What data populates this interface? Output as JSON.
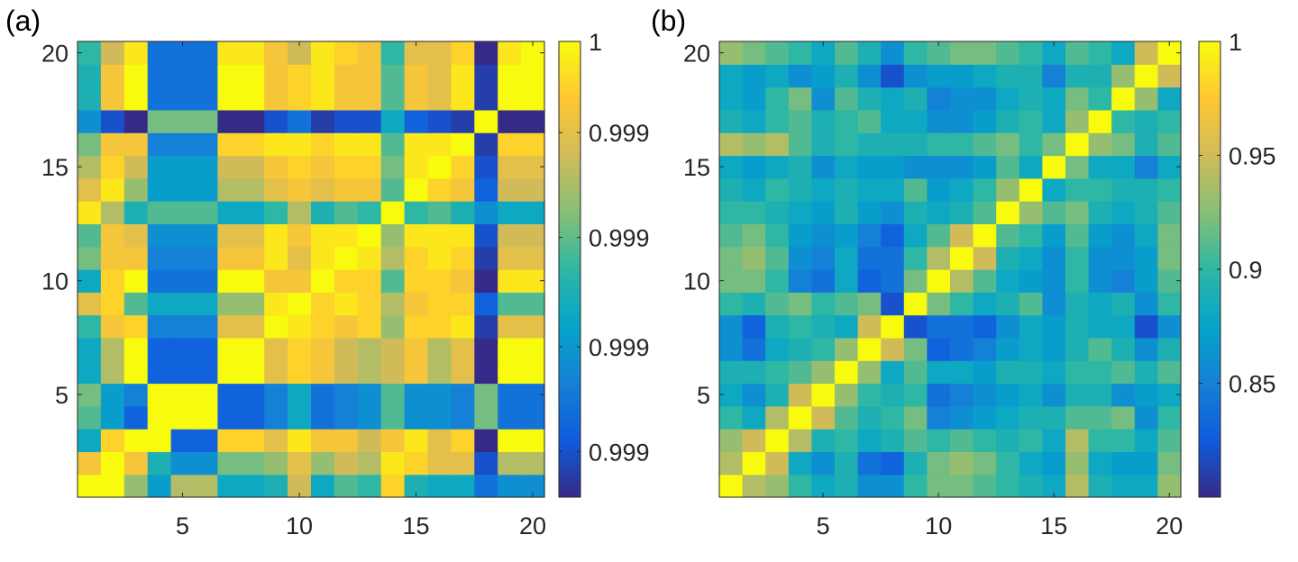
{
  "chart_data": [
    {
      "type": "heatmap",
      "panel_label": "(a)",
      "n": 20,
      "x_ticks": [
        "5",
        "10",
        "15",
        "20"
      ],
      "y_ticks": [
        "5",
        "10",
        "15",
        "20"
      ],
      "colorbar": {
        "range": [
          0.9993,
          1.0
        ],
        "tick_labels": [
          "1",
          "0.999",
          "0.999",
          "0.999",
          "0.999"
        ],
        "tick_fractions": [
          1.0,
          0.8,
          0.57,
          0.33,
          0.1
        ]
      },
      "matrix_normalized": [
        [
          1.0,
          1.0,
          0.65,
          0.35,
          0.7,
          0.7,
          0.4,
          0.4,
          0.45,
          0.75,
          0.4,
          0.55,
          0.5,
          0.9,
          0.45,
          0.4,
          0.4,
          0.2,
          0.3,
          0.3
        ],
        [
          0.85,
          1.0,
          0.85,
          0.45,
          0.3,
          0.3,
          0.6,
          0.6,
          0.65,
          0.8,
          0.65,
          0.75,
          0.7,
          0.95,
          0.9,
          0.8,
          0.8,
          0.1,
          0.7,
          0.7
        ],
        [
          0.4,
          0.9,
          1.0,
          1.0,
          0.15,
          0.15,
          0.9,
          0.9,
          0.8,
          0.95,
          0.85,
          0.85,
          0.75,
          0.85,
          0.95,
          0.8,
          0.9,
          0.0,
          1.0,
          1.0
        ],
        [
          0.55,
          0.35,
          0.15,
          1.0,
          1.0,
          1.0,
          0.15,
          0.15,
          0.25,
          0.4,
          0.2,
          0.25,
          0.3,
          0.55,
          0.3,
          0.3,
          0.25,
          0.6,
          0.2,
          0.2
        ],
        [
          0.6,
          0.35,
          0.25,
          1.0,
          1.0,
          1.0,
          0.15,
          0.15,
          0.25,
          0.4,
          0.2,
          0.25,
          0.3,
          0.55,
          0.3,
          0.3,
          0.25,
          0.6,
          0.2,
          0.2
        ],
        [
          0.4,
          0.7,
          1.0,
          0.15,
          0.15,
          0.15,
          1.0,
          1.0,
          0.8,
          0.9,
          0.85,
          0.75,
          0.7,
          0.75,
          0.85,
          0.7,
          0.8,
          0.0,
          1.0,
          1.0
        ],
        [
          0.4,
          0.7,
          1.0,
          0.15,
          0.15,
          0.15,
          1.0,
          1.0,
          0.8,
          0.9,
          0.85,
          0.75,
          0.7,
          0.75,
          0.85,
          0.7,
          0.8,
          0.0,
          1.0,
          1.0
        ],
        [
          0.5,
          0.85,
          0.9,
          0.25,
          0.25,
          0.25,
          0.8,
          0.8,
          1.0,
          0.95,
          0.9,
          0.85,
          0.9,
          0.65,
          0.9,
          0.9,
          0.95,
          0.05,
          0.8,
          0.8
        ],
        [
          0.8,
          0.9,
          0.55,
          0.4,
          0.4,
          0.4,
          0.65,
          0.65,
          0.95,
          1.0,
          0.9,
          0.95,
          0.9,
          0.7,
          0.85,
          0.9,
          0.9,
          0.15,
          0.55,
          0.55
        ],
        [
          0.4,
          0.9,
          1.0,
          0.2,
          0.2,
          0.2,
          1.0,
          1.0,
          0.85,
          0.85,
          1.0,
          0.9,
          0.9,
          0.55,
          0.9,
          0.9,
          0.85,
          0.0,
          0.95,
          0.95
        ],
        [
          0.6,
          0.85,
          0.85,
          0.25,
          0.25,
          0.25,
          0.85,
          0.85,
          0.95,
          0.8,
          0.95,
          1.0,
          0.95,
          0.7,
          0.9,
          0.95,
          0.9,
          0.05,
          0.8,
          0.8
        ],
        [
          0.55,
          0.85,
          0.8,
          0.3,
          0.3,
          0.3,
          0.8,
          0.8,
          0.95,
          0.85,
          0.95,
          0.95,
          1.0,
          0.65,
          0.95,
          0.95,
          0.95,
          0.1,
          0.75,
          0.75
        ],
        [
          0.95,
          0.7,
          0.45,
          0.55,
          0.55,
          0.55,
          0.4,
          0.4,
          0.5,
          0.7,
          0.45,
          0.55,
          0.5,
          1.0,
          0.5,
          0.55,
          0.45,
          0.3,
          0.4,
          0.4
        ],
        [
          0.8,
          0.95,
          0.65,
          0.35,
          0.35,
          0.35,
          0.7,
          0.7,
          0.8,
          0.85,
          0.8,
          0.85,
          0.85,
          0.55,
          1.0,
          0.9,
          0.85,
          0.15,
          0.75,
          0.75
        ],
        [
          0.7,
          0.9,
          0.75,
          0.35,
          0.35,
          0.35,
          0.75,
          0.75,
          0.85,
          0.9,
          0.85,
          0.9,
          0.9,
          0.6,
          0.95,
          1.0,
          0.9,
          0.1,
          0.8,
          0.8
        ],
        [
          0.6,
          0.85,
          0.85,
          0.25,
          0.25,
          0.25,
          0.9,
          0.9,
          0.95,
          0.95,
          0.9,
          0.95,
          0.95,
          0.55,
          0.95,
          0.95,
          1.0,
          0.05,
          0.9,
          0.9
        ],
        [
          0.3,
          0.1,
          0.0,
          0.6,
          0.6,
          0.6,
          0.0,
          0.0,
          0.1,
          0.2,
          0.05,
          0.1,
          0.1,
          0.4,
          0.15,
          0.1,
          0.05,
          1.0,
          0.0,
          0.0
        ],
        [
          0.45,
          0.85,
          1.0,
          0.2,
          0.2,
          0.2,
          1.0,
          1.0,
          0.85,
          0.9,
          0.95,
          0.85,
          0.85,
          0.55,
          0.85,
          0.8,
          0.95,
          0.05,
          1.0,
          1.0
        ],
        [
          0.45,
          0.85,
          1.0,
          0.2,
          0.2,
          0.2,
          1.0,
          1.0,
          0.85,
          0.9,
          0.95,
          0.85,
          0.85,
          0.55,
          0.85,
          0.8,
          0.95,
          0.05,
          1.0,
          1.0
        ],
        [
          0.5,
          0.75,
          0.95,
          0.2,
          0.2,
          0.2,
          0.95,
          0.95,
          0.85,
          0.75,
          0.95,
          0.9,
          0.85,
          0.5,
          0.8,
          0.8,
          0.9,
          0.0,
          0.95,
          1.0
        ]
      ]
    },
    {
      "type": "heatmap",
      "panel_label": "(b)",
      "n": 20,
      "x_ticks": [
        "5",
        "10",
        "15",
        "20"
      ],
      "y_ticks": [
        "5",
        "10",
        "15",
        "20"
      ],
      "colorbar": {
        "range": [
          0.8,
          1.0
        ],
        "tick_labels": [
          "1",
          "0.95",
          "0.9",
          "0.85"
        ],
        "tick_values": [
          1.0,
          0.95,
          0.9,
          0.85
        ]
      },
      "matrix": [
        [
          1.0,
          0.94,
          0.93,
          0.9,
          0.88,
          0.89,
          0.86,
          0.86,
          0.9,
          0.92,
          0.92,
          0.91,
          0.9,
          0.89,
          0.88,
          0.94,
          0.89,
          0.88,
          0.88,
          0.93
        ],
        [
          0.94,
          1.0,
          0.95,
          0.88,
          0.86,
          0.89,
          0.84,
          0.83,
          0.89,
          0.92,
          0.93,
          0.92,
          0.9,
          0.88,
          0.87,
          0.93,
          0.88,
          0.87,
          0.87,
          0.92
        ],
        [
          0.93,
          0.95,
          1.0,
          0.94,
          0.89,
          0.9,
          0.88,
          0.89,
          0.91,
          0.9,
          0.91,
          0.9,
          0.89,
          0.9,
          0.88,
          0.94,
          0.9,
          0.9,
          0.88,
          0.91
        ],
        [
          0.9,
          0.88,
          0.94,
          1.0,
          0.95,
          0.91,
          0.89,
          0.9,
          0.92,
          0.85,
          0.86,
          0.87,
          0.88,
          0.89,
          0.89,
          0.91,
          0.91,
          0.92,
          0.86,
          0.9
        ],
        [
          0.88,
          0.86,
          0.89,
          0.95,
          1.0,
          0.93,
          0.9,
          0.89,
          0.9,
          0.84,
          0.85,
          0.86,
          0.87,
          0.88,
          0.86,
          0.89,
          0.89,
          0.86,
          0.87,
          0.88
        ],
        [
          0.89,
          0.89,
          0.9,
          0.91,
          0.93,
          1.0,
          0.93,
          0.88,
          0.91,
          0.88,
          0.88,
          0.87,
          0.89,
          0.89,
          0.88,
          0.9,
          0.9,
          0.91,
          0.89,
          0.91
        ],
        [
          0.86,
          0.84,
          0.88,
          0.89,
          0.9,
          0.93,
          1.0,
          0.95,
          0.92,
          0.83,
          0.84,
          0.85,
          0.87,
          0.88,
          0.87,
          0.89,
          0.91,
          0.89,
          0.86,
          0.89
        ],
        [
          0.86,
          0.83,
          0.89,
          0.9,
          0.89,
          0.88,
          0.95,
          1.0,
          0.82,
          0.84,
          0.84,
          0.83,
          0.86,
          0.88,
          0.87,
          0.89,
          0.88,
          0.88,
          0.82,
          0.86
        ],
        [
          0.9,
          0.89,
          0.91,
          0.92,
          0.9,
          0.91,
          0.92,
          0.82,
          1.0,
          0.92,
          0.9,
          0.88,
          0.89,
          0.91,
          0.86,
          0.89,
          0.88,
          0.89,
          0.86,
          0.9
        ],
        [
          0.92,
          0.92,
          0.9,
          0.85,
          0.84,
          0.88,
          0.83,
          0.84,
          0.92,
          1.0,
          0.94,
          0.91,
          0.88,
          0.87,
          0.86,
          0.9,
          0.86,
          0.85,
          0.87,
          0.91
        ],
        [
          0.92,
          0.93,
          0.91,
          0.86,
          0.85,
          0.88,
          0.84,
          0.84,
          0.9,
          0.94,
          1.0,
          0.95,
          0.89,
          0.88,
          0.86,
          0.9,
          0.86,
          0.86,
          0.87,
          0.92
        ],
        [
          0.91,
          0.92,
          0.9,
          0.87,
          0.86,
          0.87,
          0.85,
          0.83,
          0.88,
          0.91,
          0.95,
          1.0,
          0.91,
          0.9,
          0.87,
          0.91,
          0.87,
          0.86,
          0.88,
          0.92
        ],
        [
          0.9,
          0.9,
          0.89,
          0.88,
          0.87,
          0.89,
          0.87,
          0.86,
          0.89,
          0.88,
          0.89,
          0.91,
          1.0,
          0.93,
          0.91,
          0.92,
          0.89,
          0.88,
          0.89,
          0.91
        ],
        [
          0.89,
          0.88,
          0.9,
          0.89,
          0.88,
          0.89,
          0.88,
          0.88,
          0.91,
          0.87,
          0.88,
          0.9,
          0.93,
          1.0,
          0.88,
          0.9,
          0.9,
          0.89,
          0.89,
          0.9
        ],
        [
          0.88,
          0.87,
          0.88,
          0.89,
          0.86,
          0.88,
          0.87,
          0.87,
          0.86,
          0.86,
          0.86,
          0.87,
          0.91,
          0.88,
          1.0,
          0.92,
          0.88,
          0.88,
          0.85,
          0.88
        ],
        [
          0.94,
          0.93,
          0.94,
          0.91,
          0.89,
          0.9,
          0.89,
          0.89,
          0.89,
          0.9,
          0.9,
          0.91,
          0.92,
          0.9,
          0.92,
          1.0,
          0.93,
          0.92,
          0.89,
          0.91
        ],
        [
          0.89,
          0.88,
          0.9,
          0.91,
          0.89,
          0.9,
          0.91,
          0.88,
          0.88,
          0.86,
          0.86,
          0.87,
          0.89,
          0.9,
          0.88,
          0.93,
          1.0,
          0.9,
          0.89,
          0.9
        ],
        [
          0.88,
          0.87,
          0.9,
          0.92,
          0.86,
          0.91,
          0.89,
          0.88,
          0.89,
          0.85,
          0.86,
          0.86,
          0.88,
          0.89,
          0.88,
          0.92,
          0.9,
          1.0,
          0.93,
          0.88
        ],
        [
          0.88,
          0.87,
          0.88,
          0.86,
          0.87,
          0.89,
          0.86,
          0.82,
          0.86,
          0.87,
          0.87,
          0.88,
          0.89,
          0.89,
          0.85,
          0.89,
          0.89,
          0.93,
          1.0,
          0.95
        ],
        [
          0.93,
          0.92,
          0.91,
          0.9,
          0.88,
          0.91,
          0.89,
          0.86,
          0.9,
          0.91,
          0.92,
          0.92,
          0.91,
          0.9,
          0.88,
          0.91,
          0.9,
          0.88,
          0.95,
          1.0
        ]
      ]
    }
  ]
}
